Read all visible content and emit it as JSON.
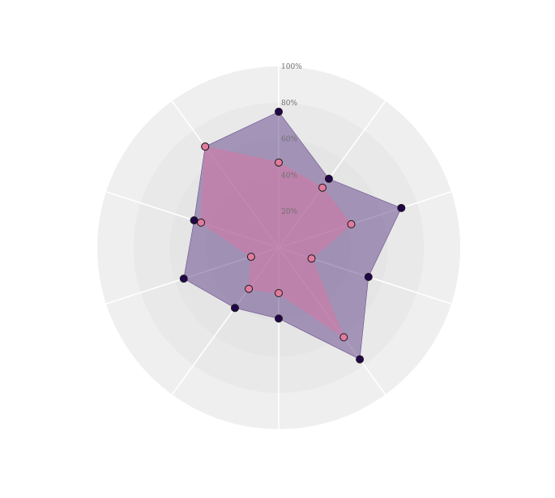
{
  "chart_data": {
    "type": "radar",
    "title": "",
    "radial_axis": {
      "range": [
        0,
        100
      ],
      "tick_labels": [
        "20%",
        "40%",
        "60%",
        "80%",
        "100%"
      ],
      "tick_values": [
        20,
        40,
        60,
        80,
        100
      ]
    },
    "num_axes": 10,
    "category_labels": [
      "",
      "",
      "",
      "",
      "",
      "",
      "",
      "",
      "",
      ""
    ],
    "grid": true,
    "legend": "none",
    "series": [
      {
        "values": [
          75,
          47,
          71,
          52,
          76,
          39,
          41,
          55,
          49,
          69
        ],
        "fill_color": "#6b4e8f",
        "point_color": "#23054a"
      },
      {
        "values": [
          47,
          41,
          42,
          19,
          61,
          25,
          28,
          16,
          45,
          69
        ],
        "fill_color": "#d17aa5",
        "point_color": "#e07b9e"
      }
    ]
  }
}
